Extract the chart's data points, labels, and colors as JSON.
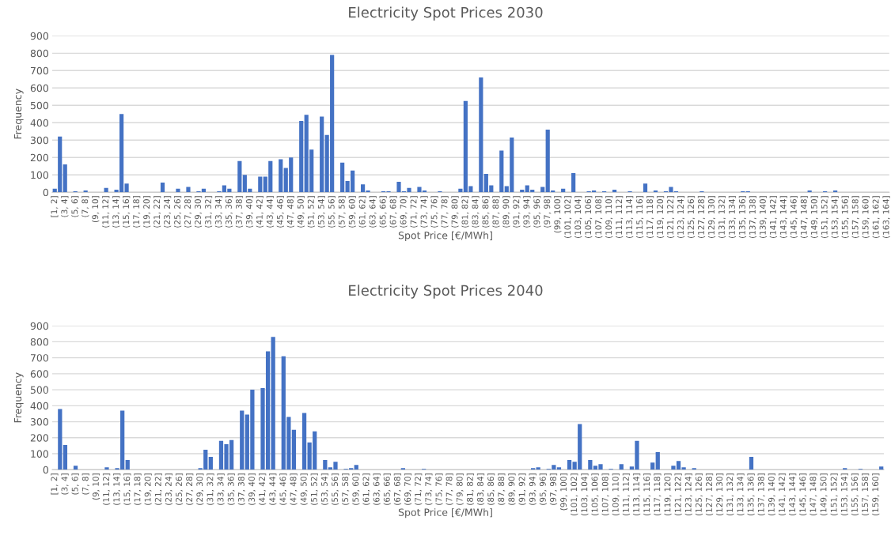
{
  "chart_data": [
    {
      "type": "bar",
      "title": "Electricity Spot Prices 2030",
      "xlabel": "Spot Price [€/MWh]",
      "ylabel": "Frequency",
      "color": "#4472c4",
      "ylim": [
        0,
        900
      ],
      "yticks": [
        0,
        100,
        200,
        300,
        400,
        500,
        600,
        700,
        800,
        900
      ],
      "grid": "y",
      "categories": [
        "[1, 2]",
        null,
        "(3, 4]",
        null,
        "(5, 6]",
        null,
        "(7, 8]",
        null,
        "(9, 10]",
        null,
        "(11, 12]",
        null,
        "(13, 14]",
        null,
        "(15, 16]",
        null,
        "(17, 18]",
        null,
        "(19, 20]",
        null,
        "(21, 22]",
        null,
        "(23, 24]",
        null,
        "(25, 26]",
        null,
        "(27, 28]",
        null,
        "(29, 30]",
        null,
        "(31, 32]",
        null,
        "(33, 34]",
        null,
        "(35, 36]",
        null,
        "(37, 38]",
        null,
        "(39, 40]",
        null,
        "(41, 42]",
        null,
        "(43, 44]",
        null,
        "(45, 46]",
        null,
        "(47, 48]",
        null,
        "(49, 50]",
        null,
        "(51, 52]",
        null,
        "(53, 54]",
        null,
        "(55, 56]",
        null,
        "(57, 58]",
        null,
        "(59, 60]",
        null,
        "(61, 62]",
        null,
        "(63, 64]",
        null,
        "(65, 66]",
        null,
        "(67, 68]",
        null,
        "(69, 70]",
        null,
        "(71, 72]",
        null,
        "(73, 74]",
        null,
        "(75, 76]",
        null,
        "(77, 78]",
        null,
        "(79, 80]",
        null,
        "(81, 82]",
        null,
        "(83, 84]",
        null,
        "(85, 86]",
        null,
        "(87, 88]",
        null,
        "(89, 90]",
        null,
        "(91, 92]",
        null,
        "(93, 94]",
        null,
        "(95, 96]",
        null,
        "(97, 98]",
        null,
        "(99, 100]",
        null,
        "(101, 102]",
        null,
        "(103, 104]",
        null,
        "(105, 106]",
        null,
        "(107, 108]",
        null,
        "(109, 110]",
        null,
        "(111, 112]",
        null,
        "(113, 114]",
        null,
        "(115, 116]",
        null,
        "(117, 118]",
        null,
        "(119, 120]",
        null,
        "(121, 122]",
        null,
        "(123, 124]",
        null,
        "(125, 126]",
        null,
        "(127, 128]",
        null,
        "(129, 130]",
        null,
        "(131, 132]",
        null,
        "(133, 134]",
        null,
        "(135, 136]",
        null,
        "(137, 138]",
        null,
        "(139, 140]",
        null,
        "(141, 142]",
        null,
        "(143, 144]",
        null,
        "(145, 146]",
        null,
        "(147, 148]",
        null,
        "(149, 150]",
        null,
        "(151, 152]",
        null,
        "(153, 154]",
        null,
        "(155, 156]",
        null,
        "(157, 158]",
        null,
        "(159, 160]",
        null,
        "(161, 162]",
        null,
        "(163, 164]"
      ],
      "values": [
        20,
        320,
        160,
        0,
        5,
        0,
        10,
        0,
        0,
        0,
        25,
        0,
        15,
        450,
        50,
        0,
        0,
        0,
        0,
        0,
        0,
        55,
        0,
        0,
        20,
        0,
        30,
        0,
        5,
        20,
        0,
        0,
        5,
        40,
        20,
        0,
        180,
        100,
        20,
        0,
        90,
        90,
        180,
        0,
        190,
        140,
        200,
        0,
        410,
        445,
        245,
        0,
        435,
        330,
        790,
        0,
        170,
        65,
        125,
        0,
        45,
        10,
        0,
        0,
        5,
        5,
        0,
        60,
        5,
        25,
        0,
        30,
        10,
        0,
        0,
        5,
        0,
        0,
        0,
        20,
        525,
        35,
        0,
        660,
        105,
        40,
        0,
        240,
        35,
        315,
        0,
        15,
        40,
        15,
        0,
        30,
        360,
        10,
        0,
        20,
        0,
        110,
        0,
        0,
        5,
        10,
        0,
        5,
        0,
        15,
        0,
        0,
        5,
        0,
        0,
        50,
        0,
        10,
        0,
        5,
        30,
        5,
        0,
        0,
        0,
        0,
        5,
        0,
        0,
        0,
        0,
        0,
        0,
        0,
        5,
        5,
        0,
        0,
        0,
        0,
        0,
        0,
        0,
        0,
        0,
        0,
        0,
        10,
        0,
        0,
        5,
        0,
        10,
        0,
        0,
        0,
        0,
        0,
        0,
        0,
        0,
        0,
        0
      ]
    },
    {
      "type": "bar",
      "title": "Electricity Spot Prices 2040",
      "xlabel": "Spot Price [€/MWh]",
      "ylabel": "Frequency",
      "color": "#4472c4",
      "ylim": [
        0,
        900
      ],
      "yticks": [
        0,
        100,
        200,
        300,
        400,
        500,
        600,
        700,
        800,
        900
      ],
      "grid": "y",
      "categories": [
        "[1, 2]",
        null,
        "(3, 4]",
        null,
        "(5, 6]",
        null,
        "(7, 8]",
        null,
        "(9, 10]",
        null,
        "(11, 12]",
        null,
        "(13, 14]",
        null,
        "(15, 16]",
        null,
        "(17, 18]",
        null,
        "(19, 20]",
        null,
        "(21, 22]",
        null,
        "(23, 24]",
        null,
        "(25, 26]",
        null,
        "(27, 28]",
        null,
        "(29, 30]",
        null,
        "(31, 32]",
        null,
        "(33, 34]",
        null,
        "(35, 36]",
        null,
        "(37, 38]",
        null,
        "(39, 40]",
        null,
        "(41, 42]",
        null,
        "(43, 44]",
        null,
        "(45, 46]",
        null,
        "(47, 48]",
        null,
        "(49, 50]",
        null,
        "(51, 52]",
        null,
        "(53, 54]",
        null,
        "(55, 56]",
        null,
        "(57, 58]",
        null,
        "(59, 60]",
        null,
        "(61, 62]",
        null,
        "(63, 64]",
        null,
        "(65, 66]",
        null,
        "(67, 68]",
        null,
        "(69, 70]",
        null,
        "(71, 72]",
        null,
        "(73, 74]",
        null,
        "(75, 76]",
        null,
        "(77, 78]",
        null,
        "(79, 80]",
        null,
        "(81, 82]",
        null,
        "(83, 84]",
        null,
        "(85, 86]",
        null,
        "(87, 88]",
        null,
        "(89, 90]",
        null,
        "(91, 92]",
        null,
        "(93, 94]",
        null,
        "(95, 96]",
        null,
        "(97, 98]",
        null,
        "(99, 100]",
        null,
        "(101, 102]",
        null,
        "(103, 104]",
        null,
        "(105, 106]",
        null,
        "(107, 108]",
        null,
        "(109, 110]",
        null,
        "(111, 112]",
        null,
        "(113, 114]",
        null,
        "(115, 116]",
        null,
        "(117, 118]",
        null,
        "(119, 120]",
        null,
        "(121, 122]",
        null,
        "(123, 124]",
        null,
        "(125, 126]",
        null,
        "(127, 128]",
        null,
        "(129, 130]",
        null,
        "(131, 132]",
        null,
        "(133, 134]",
        null,
        "(135, 136]",
        null,
        "(137, 138]",
        null,
        "(139, 140]",
        null,
        "(141, 142]",
        null,
        "(143, 144]",
        null,
        "(145, 146]",
        null,
        "(147, 148]",
        null,
        "(149, 150]",
        null,
        "(151, 152]",
        null,
        "(153, 154]",
        null,
        "(155, 156]",
        null,
        "(157, 158]",
        null,
        "(159, 160]",
        null
      ],
      "values": [
        0,
        380,
        155,
        0,
        25,
        0,
        0,
        0,
        0,
        0,
        15,
        0,
        10,
        370,
        60,
        0,
        0,
        0,
        0,
        0,
        0,
        0,
        0,
        0,
        0,
        0,
        0,
        0,
        10,
        125,
        80,
        0,
        180,
        160,
        185,
        0,
        370,
        345,
        500,
        0,
        510,
        740,
        830,
        0,
        710,
        330,
        250,
        0,
        355,
        170,
        240,
        0,
        60,
        15,
        50,
        0,
        5,
        10,
        30,
        0,
        0,
        0,
        0,
        0,
        0,
        0,
        0,
        10,
        0,
        0,
        0,
        5,
        0,
        0,
        0,
        0,
        0,
        0,
        0,
        0,
        0,
        0,
        0,
        0,
        0,
        0,
        0,
        0,
        0,
        0,
        0,
        0,
        10,
        15,
        0,
        5,
        30,
        15,
        0,
        60,
        50,
        285,
        0,
        60,
        25,
        35,
        0,
        5,
        0,
        35,
        0,
        20,
        180,
        0,
        0,
        45,
        110,
        0,
        0,
        25,
        55,
        15,
        0,
        10,
        0,
        0,
        0,
        0,
        0,
        0,
        0,
        0,
        0,
        0,
        80,
        0,
        0,
        0,
        0,
        0,
        0,
        0,
        0,
        0,
        0,
        0,
        0,
        0,
        0,
        0,
        0,
        0,
        10,
        0,
        0,
        5,
        0,
        0,
        0,
        20
      ]
    }
  ]
}
